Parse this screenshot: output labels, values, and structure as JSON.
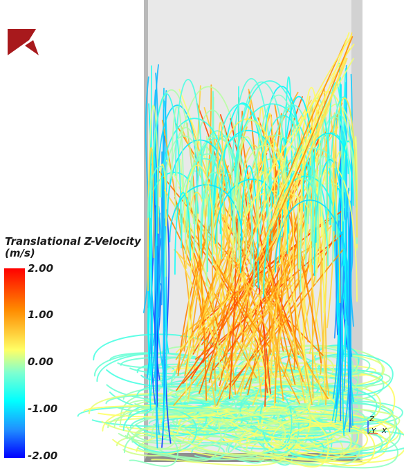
{
  "legend": {
    "title_line1": "Translational Z-Velocity",
    "title_line2": "(m/s)",
    "ticks": [
      "2.00",
      "1.00",
      "0.00",
      "-1.00",
      "-2.00"
    ],
    "color_max": "#ff0000",
    "color_min": "#0000ff"
  },
  "axes_triad": {
    "z": "Z",
    "y": "Y",
    "x": "X"
  },
  "logo": {
    "name": "logo-icon",
    "color": "#b01c1c"
  }
}
